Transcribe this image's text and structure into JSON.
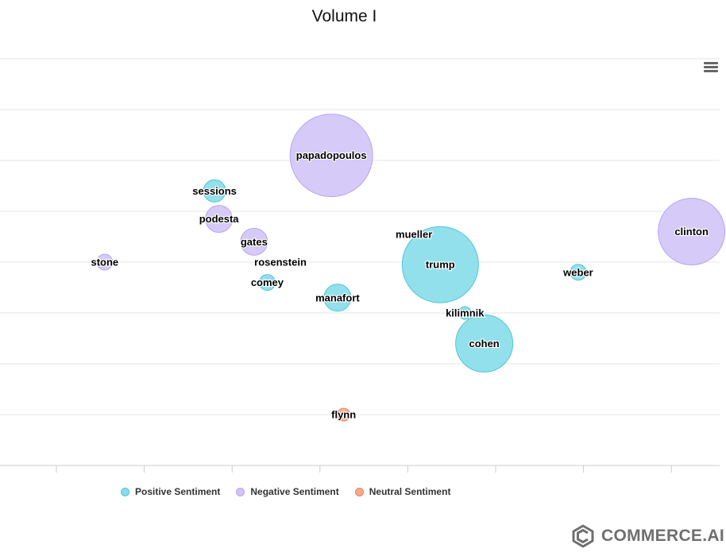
{
  "chart_data": {
    "type": "bubble",
    "title": "Volume I",
    "xlabel": "",
    "ylabel": "",
    "x_tick_labels": [],
    "y_tick_labels": [],
    "xlim": [
      0,
      8
    ],
    "ylim": [
      0,
      8
    ],
    "grid": true,
    "legend_position": "bottom-left",
    "series": [
      {
        "name": "Positive Sentiment",
        "color": "#86dde9",
        "border": "#4fc6d8",
        "points": [
          {
            "label": "sessions",
            "x": 2.3,
            "y": 5.4,
            "size": 14
          },
          {
            "label": "rosenstein",
            "x": 3.05,
            "y": 4.0,
            "size": 3
          },
          {
            "label": "comey",
            "x": 2.9,
            "y": 3.6,
            "size": 10
          },
          {
            "label": "manafort",
            "x": 3.7,
            "y": 3.3,
            "size": 17
          },
          {
            "label": "trump",
            "x": 4.87,
            "y": 3.95,
            "size": 48
          },
          {
            "label": "kilimnik",
            "x": 5.15,
            "y": 3.0,
            "size": 8
          },
          {
            "label": "cohen",
            "x": 5.37,
            "y": 2.4,
            "size": 36
          },
          {
            "label": "weber",
            "x": 6.44,
            "y": 3.8,
            "size": 10
          }
        ]
      },
      {
        "name": "Negative Sentiment",
        "color": "#d1c4f7",
        "border": "#b8a6ef",
        "points": [
          {
            "label": "papadopoulos",
            "x": 3.63,
            "y": 6.1,
            "size": 52
          },
          {
            "label": "podesta",
            "x": 2.35,
            "y": 4.85,
            "size": 17
          },
          {
            "label": "gates",
            "x": 2.75,
            "y": 4.4,
            "size": 17
          },
          {
            "label": "stone",
            "x": 1.05,
            "y": 4.0,
            "size": 10
          },
          {
            "label": "clinton",
            "x": 7.73,
            "y": 4.6,
            "size": 42
          },
          {
            "label": "mueller",
            "x": 4.57,
            "y": 4.55,
            "size": 3
          }
        ]
      },
      {
        "name": "Neutral Sentiment",
        "color": "#f9a98a",
        "border": "#ee8060",
        "points": [
          {
            "label": "flynn",
            "x": 3.77,
            "y": 1.0,
            "size": 8
          }
        ]
      }
    ]
  },
  "brand": {
    "name": "COMMERCE.AI"
  },
  "icons": {
    "menu": "hamburger-menu-icon",
    "logo": "commerce-ai-logo-icon"
  }
}
